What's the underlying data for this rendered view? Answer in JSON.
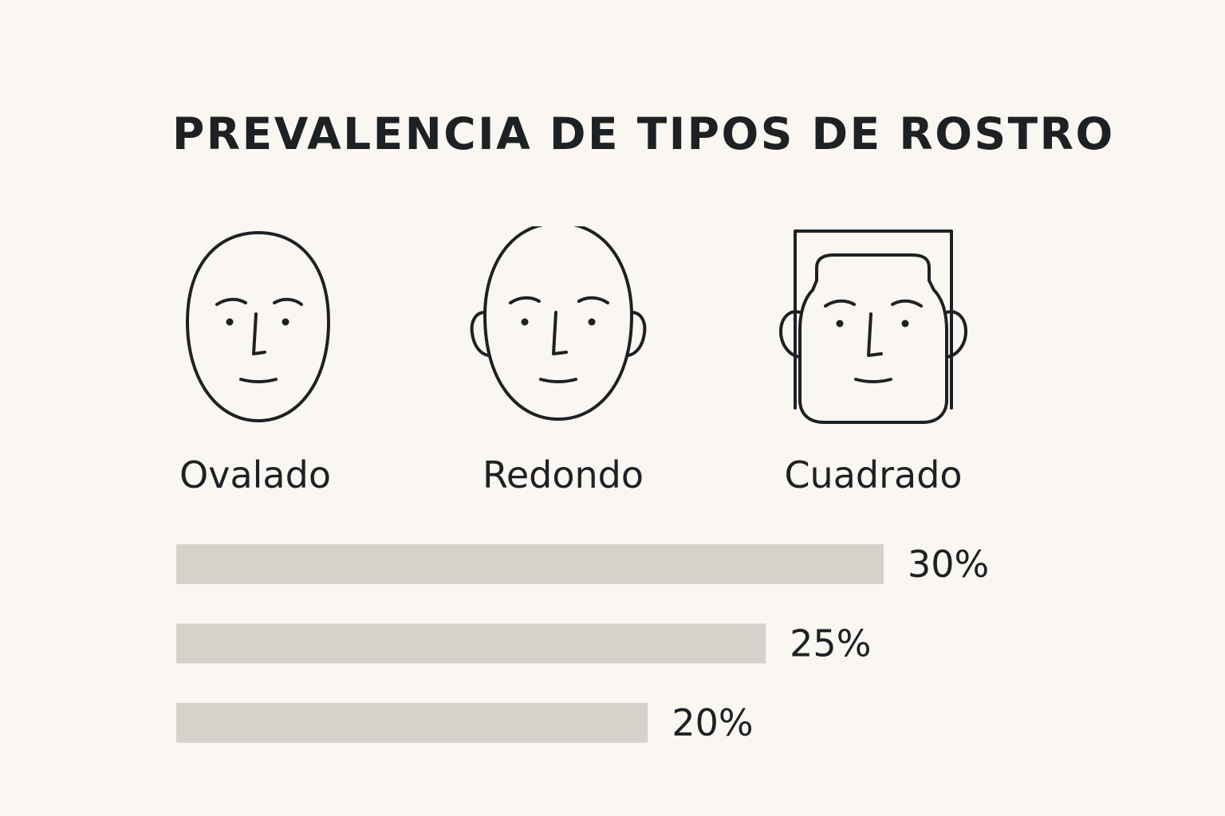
{
  "chart_data": {
    "type": "bar",
    "orientation": "horizontal",
    "title": "PREVALENCIA DE TIPOS DE ROSTRO",
    "categories": [
      "Ovalado",
      "Redondo",
      "Cuadrado"
    ],
    "values": [
      30,
      25,
      20
    ],
    "value_labels": [
      "30%",
      "25%",
      "20%"
    ],
    "unit": "%",
    "bar_color": "#d6d1cb",
    "grid": false,
    "legend": "none"
  },
  "faces": [
    {
      "label": "Ovalado",
      "icon": "oval-face-icon"
    },
    {
      "label": "Redondo",
      "icon": "round-face-icon"
    },
    {
      "label": "Cuadrado",
      "icon": "square-face-icon"
    }
  ]
}
